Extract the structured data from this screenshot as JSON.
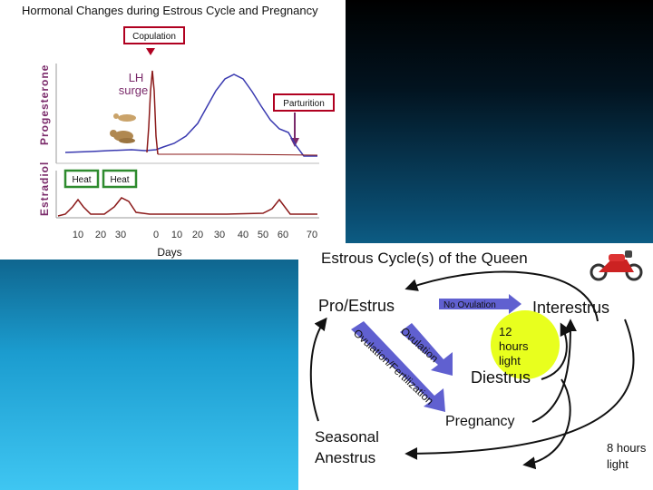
{
  "hormone_chart": {
    "title": "Hormonal Changes during Estrous Cycle and Pregnancy",
    "progesterone_label": "Progesterone",
    "estradiol_label": "Estradiol",
    "copulation_label": "Copulation",
    "lh_label": "LH",
    "surge_label": "surge",
    "parturition_label": "Parturition",
    "heat_label_1": "Heat",
    "heat_label_2": "Heat",
    "days_label": "Days",
    "tick_labels": [
      "10",
      "20",
      "30",
      "0",
      "10",
      "20",
      "30",
      "40",
      "50",
      "60",
      "70"
    ],
    "colors": {
      "progesterone": "#3a3ab0",
      "lh": "#8b1a1a",
      "estradiol": "#8b1a1a",
      "copulation_box": "#b00020",
      "heat_box": "#2e8b2e",
      "axis_text": "#7a2a6a"
    }
  },
  "cycle_diagram": {
    "title": "Estrous Cycle(s) of the Queen",
    "pro_estrus": "Pro/Estrus",
    "no_ovulation": "No Ovulation",
    "interestrus": "Interestrus",
    "ovulation": "Ovulation",
    "ovulation_fertilization": "Ovulation/Fertilization",
    "hours_12_line1": "12",
    "hours_12_line2": "hours",
    "hours_12_line3": "light",
    "diestrus": "Diestrus",
    "pregnancy": "Pregnancy",
    "seasonal": "Seasonal",
    "anestrus": "Anestrus",
    "hours_8_line1": "8 hours",
    "hours_8_line2": "light",
    "motorcycle_icon": "motorcycle-icon",
    "colors": {
      "bubble": "#e8ff1e",
      "arrow": "#6060d0",
      "text": "#111111"
    }
  }
}
